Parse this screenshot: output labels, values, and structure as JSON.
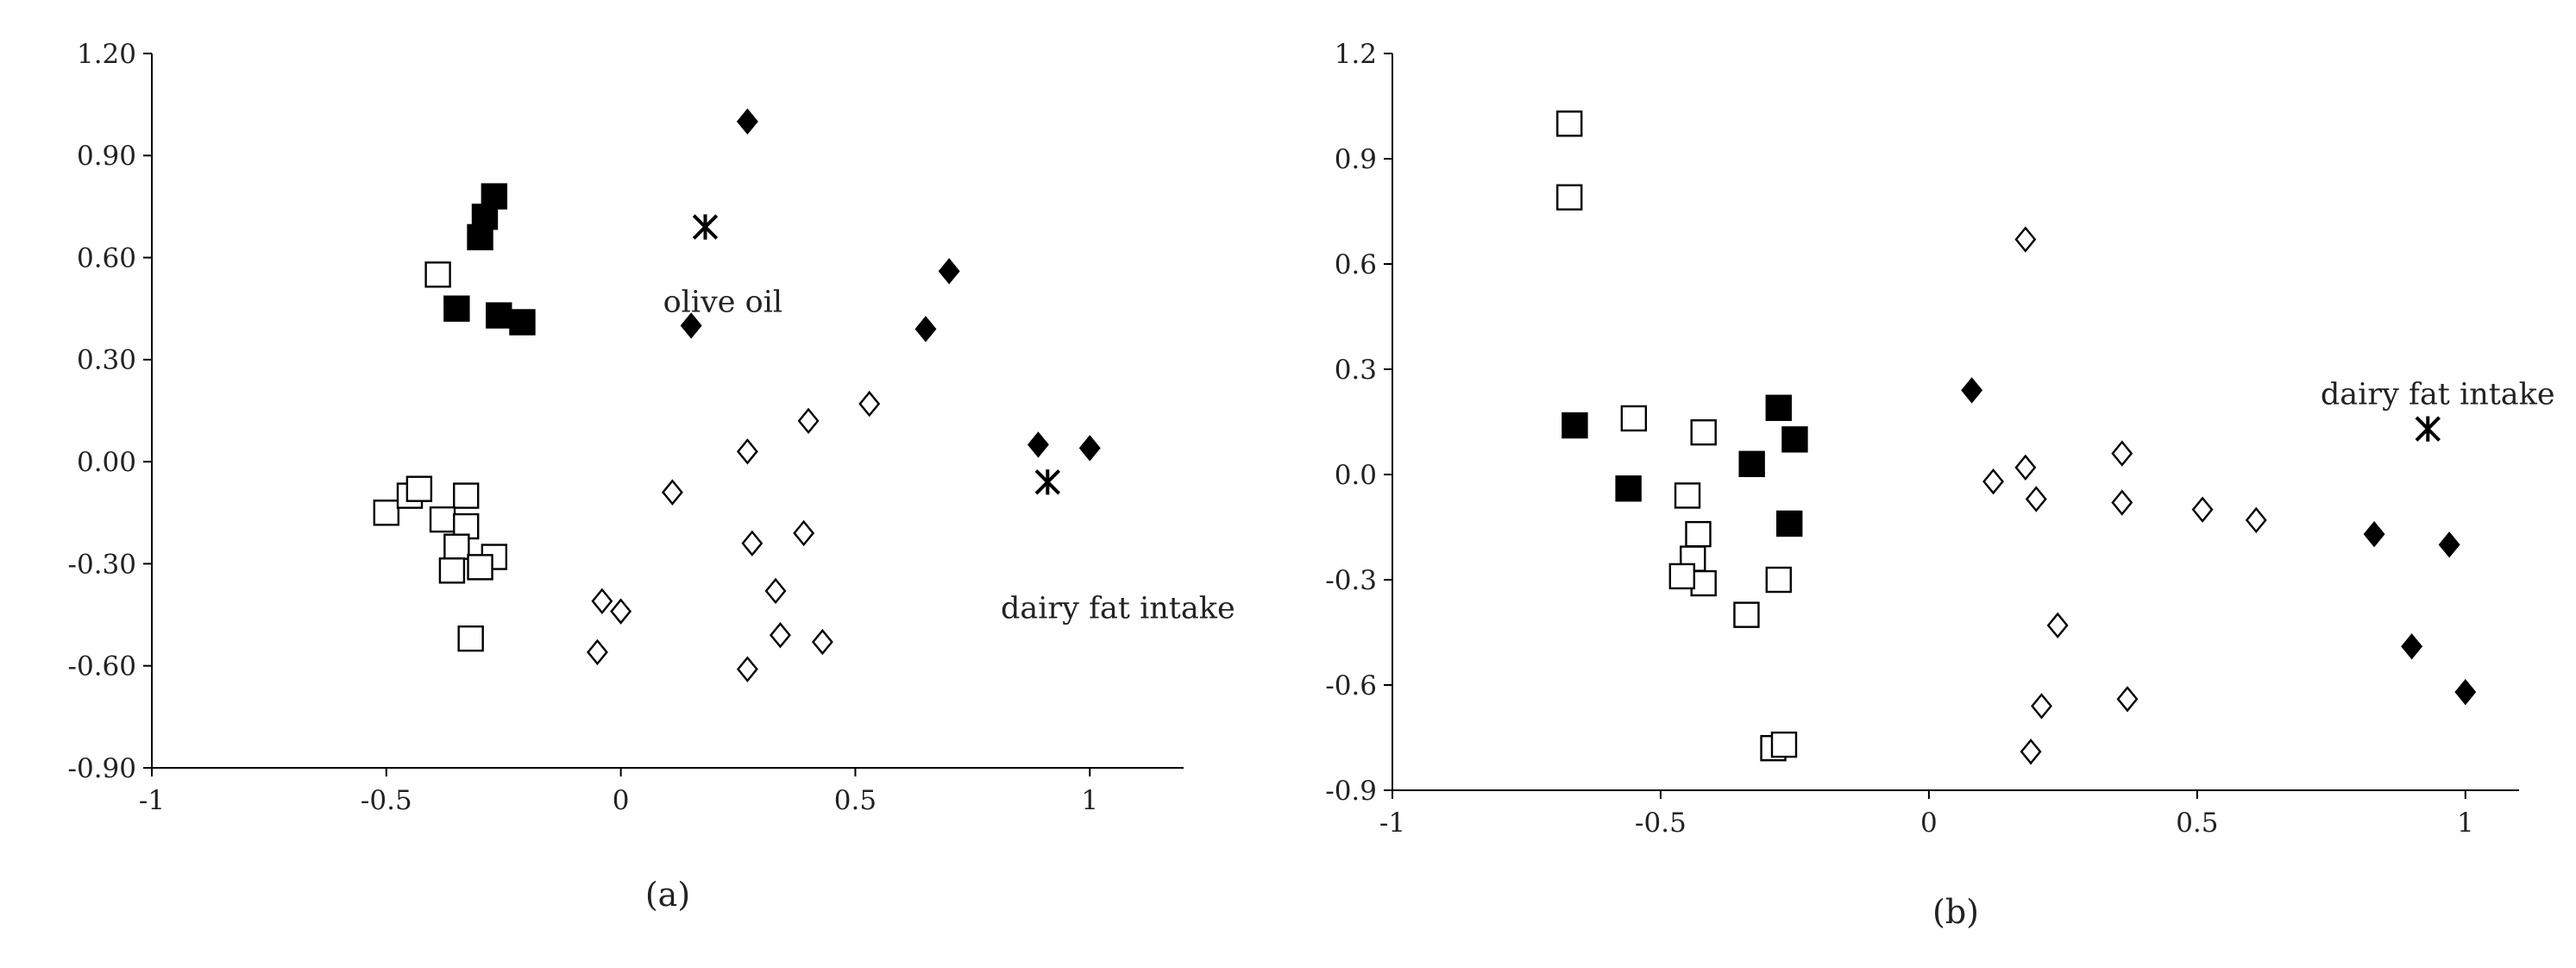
{
  "chart_data": [
    {
      "panel_label": "(a)",
      "type": "scatter",
      "title": "",
      "xlabel": "",
      "ylabel": "",
      "xlim": [
        -1,
        1.2
      ],
      "ylim": [
        -0.9,
        1.2
      ],
      "x_ticks": [
        "-1",
        "-0.5",
        "0",
        "0.5",
        "1"
      ],
      "x_tick_values": [
        -1,
        -0.5,
        0,
        0.5,
        1
      ],
      "y_ticks": [
        "1.20",
        "0.90",
        "0.60",
        "0.30",
        "0.00",
        "-0.30",
        "-0.60",
        "-0.90"
      ],
      "y_tick_values": [
        1.2,
        0.9,
        0.6,
        0.3,
        0.0,
        -0.3,
        -0.6,
        -0.9
      ],
      "grid": false,
      "annotations": [
        {
          "text": "olive oil",
          "x": 0.09,
          "y": 0.44
        },
        {
          "text": "dairy fat intake",
          "x": 0.81,
          "y": -0.46
        }
      ],
      "series": [
        {
          "marker": "filled-square",
          "points": [
            [
              -0.27,
              0.78
            ],
            [
              -0.29,
              0.72
            ],
            [
              -0.3,
              0.66
            ],
            [
              -0.35,
              0.45
            ],
            [
              -0.26,
              0.43
            ],
            [
              -0.21,
              0.41
            ]
          ]
        },
        {
          "marker": "open-square",
          "points": [
            [
              -0.39,
              0.55
            ],
            [
              -0.5,
              -0.15
            ],
            [
              -0.45,
              -0.1
            ],
            [
              -0.43,
              -0.08
            ],
            [
              -0.33,
              -0.1
            ],
            [
              -0.38,
              -0.17
            ],
            [
              -0.33,
              -0.19
            ],
            [
              -0.35,
              -0.25
            ],
            [
              -0.27,
              -0.28
            ],
            [
              -0.36,
              -0.32
            ],
            [
              -0.3,
              -0.31
            ],
            [
              -0.32,
              -0.52
            ]
          ]
        },
        {
          "marker": "filled-diamond",
          "points": [
            [
              0.27,
              1.0
            ],
            [
              0.7,
              0.56
            ],
            [
              0.15,
              0.4
            ],
            [
              0.65,
              0.39
            ],
            [
              0.89,
              0.05
            ],
            [
              1.0,
              0.04
            ]
          ]
        },
        {
          "marker": "open-diamond",
          "points": [
            [
              0.53,
              0.17
            ],
            [
              0.4,
              0.12
            ],
            [
              0.27,
              0.03
            ],
            [
              0.11,
              -0.09
            ],
            [
              0.39,
              -0.21
            ],
            [
              0.28,
              -0.24
            ],
            [
              0.33,
              -0.38
            ],
            [
              -0.04,
              -0.41
            ],
            [
              0.0,
              -0.44
            ],
            [
              0.34,
              -0.51
            ],
            [
              0.43,
              -0.53
            ],
            [
              -0.05,
              -0.56
            ],
            [
              0.27,
              -0.61
            ]
          ]
        },
        {
          "marker": "asterisk",
          "points": [
            [
              0.18,
              0.69
            ],
            [
              0.91,
              -0.06
            ]
          ]
        }
      ]
    },
    {
      "panel_label": "(b)",
      "type": "scatter",
      "title": "",
      "xlabel": "",
      "ylabel": "",
      "xlim": [
        -1,
        1.1
      ],
      "ylim": [
        -0.9,
        1.2
      ],
      "x_ticks": [
        "-1",
        "-0.5",
        "0",
        "0.5",
        "1"
      ],
      "x_tick_values": [
        -1,
        -0.5,
        0,
        0.5,
        1
      ],
      "y_ticks": [
        "1.2",
        "0.9",
        "0.6",
        "0.3",
        "0.0",
        "-0.3",
        "-0.6",
        "-0.9"
      ],
      "y_tick_values": [
        1.2,
        0.9,
        0.6,
        0.3,
        0.0,
        -0.3,
        -0.6,
        -0.9
      ],
      "grid": false,
      "annotations": [
        {
          "text": "dairy fat intake",
          "x": 0.73,
          "y": 0.2
        }
      ],
      "series": [
        {
          "marker": "filled-square",
          "points": [
            [
              -0.66,
              0.14
            ],
            [
              -0.56,
              -0.04
            ],
            [
              -0.28,
              0.19
            ],
            [
              -0.25,
              0.1
            ],
            [
              -0.33,
              0.03
            ],
            [
              -0.26,
              -0.14
            ]
          ]
        },
        {
          "marker": "open-square",
          "points": [
            [
              -0.67,
              1.0
            ],
            [
              -0.67,
              0.79
            ],
            [
              -0.55,
              0.16
            ],
            [
              -0.42,
              0.12
            ],
            [
              -0.45,
              -0.06
            ],
            [
              -0.43,
              -0.17
            ],
            [
              -0.44,
              -0.24
            ],
            [
              -0.42,
              -0.31
            ],
            [
              -0.46,
              -0.29
            ],
            [
              -0.28,
              -0.3
            ],
            [
              -0.34,
              -0.4
            ],
            [
              -0.29,
              -0.78
            ],
            [
              -0.27,
              -0.77
            ]
          ]
        },
        {
          "marker": "filled-diamond",
          "points": [
            [
              0.08,
              0.24
            ],
            [
              0.83,
              -0.17
            ],
            [
              0.97,
              -0.2
            ],
            [
              0.9,
              -0.49
            ],
            [
              1.0,
              -0.62
            ]
          ]
        },
        {
          "marker": "open-diamond",
          "points": [
            [
              0.18,
              0.67
            ],
            [
              0.18,
              0.02
            ],
            [
              0.2,
              -0.07
            ],
            [
              0.12,
              -0.02
            ],
            [
              0.36,
              0.06
            ],
            [
              0.36,
              -0.08
            ],
            [
              0.51,
              -0.1
            ],
            [
              0.61,
              -0.13
            ],
            [
              0.24,
              -0.43
            ],
            [
              0.21,
              -0.66
            ],
            [
              0.37,
              -0.64
            ],
            [
              0.19,
              -0.79
            ]
          ]
        },
        {
          "marker": "asterisk",
          "points": [
            [
              0.93,
              0.13
            ]
          ]
        }
      ]
    }
  ]
}
